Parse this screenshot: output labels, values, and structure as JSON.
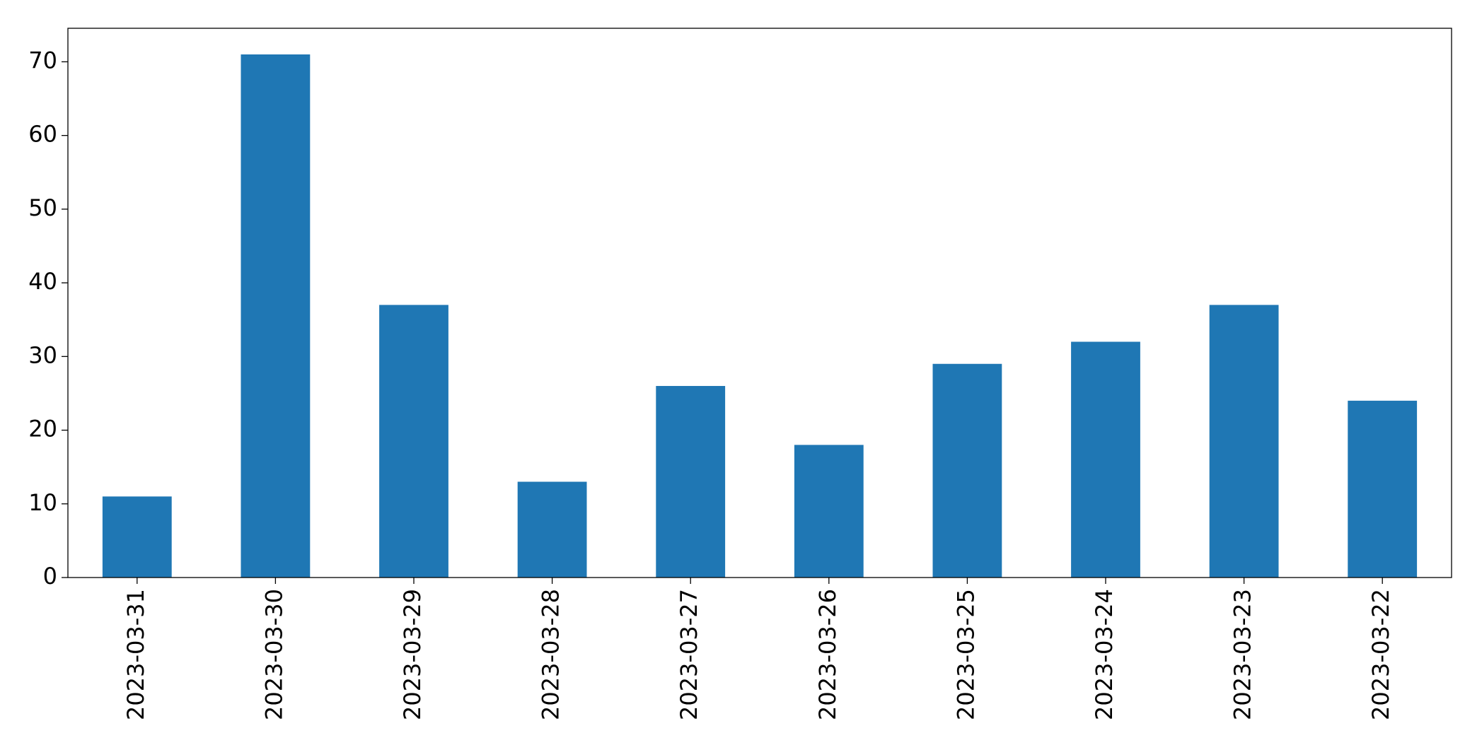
{
  "chart_data": {
    "type": "bar",
    "categories": [
      "2023-03-31",
      "2023-03-30",
      "2023-03-29",
      "2023-03-28",
      "2023-03-27",
      "2023-03-26",
      "2023-03-25",
      "2023-03-24",
      "2023-03-23",
      "2023-03-22"
    ],
    "values": [
      11,
      71,
      37,
      13,
      26,
      18,
      29,
      32,
      37,
      24
    ],
    "color": "#1f77b4",
    "ylim": [
      0,
      74.55
    ],
    "yticks": [
      0,
      10,
      20,
      30,
      40,
      50,
      60,
      70
    ],
    "grid": false
  }
}
